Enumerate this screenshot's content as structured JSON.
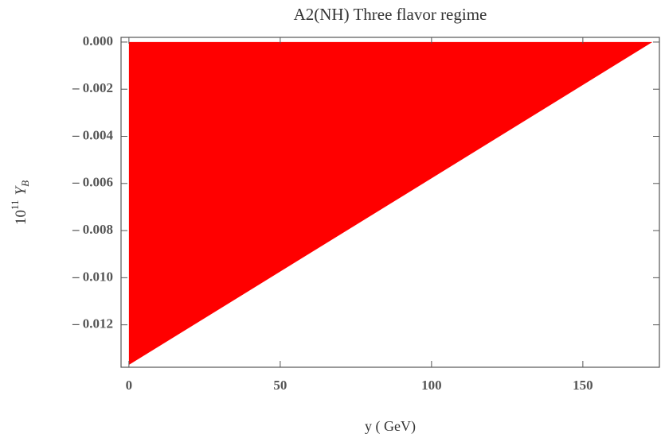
{
  "chart_data": {
    "type": "area",
    "title": "A2(NH) Three flavor regime",
    "xlabel": "y ( GeV)",
    "ylabel": {
      "base": "10",
      "exponent": "11",
      "symbol": "Y",
      "subscript": "B"
    },
    "x": [
      0,
      173
    ],
    "series": [
      {
        "color": "#ff0000",
        "values": [
          -0.0137,
          0
        ]
      }
    ],
    "xlim": [
      -2.6,
      175.3
    ],
    "ylim": [
      -0.0138,
      0.0002
    ],
    "xticks": [
      0,
      50,
      100,
      150
    ],
    "yticks": [
      {
        "value": 0,
        "label": "0.000"
      },
      {
        "value": -0.002,
        "label": "– 0.002"
      },
      {
        "value": -0.004,
        "label": "– 0.004"
      },
      {
        "value": -0.006,
        "label": "– 0.006"
      },
      {
        "value": -0.008,
        "label": "– 0.008"
      },
      {
        "value": -0.01,
        "label": "– 0.010"
      },
      {
        "value": -0.012,
        "label": "– 0.012"
      }
    ]
  }
}
